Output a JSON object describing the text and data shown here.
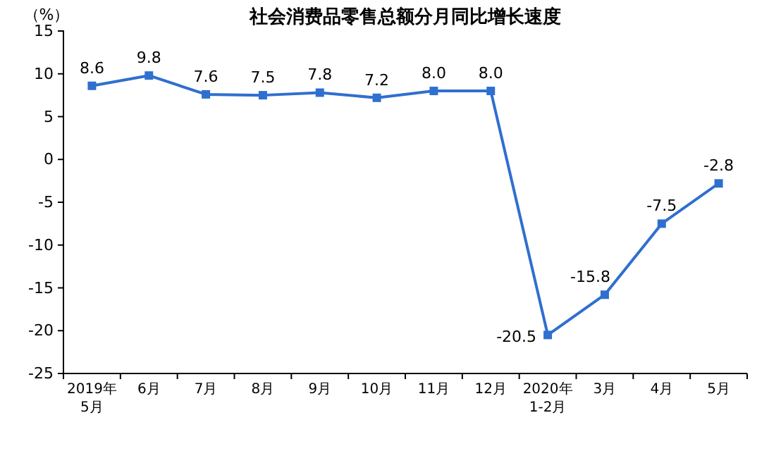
{
  "chart_data": {
    "type": "line",
    "title": "社会消费品零售总额分月同比增长速度",
    "ylabel": "（%）",
    "categories": [
      "2019年\n5月",
      "6月",
      "7月",
      "8月",
      "9月",
      "10月",
      "11月",
      "12月",
      "2020年\n1-2月",
      "3月",
      "4月",
      "5月"
    ],
    "series": [
      {
        "color": "#2f6fcf",
        "values": [
          8.6,
          9.8,
          7.6,
          7.5,
          7.8,
          7.2,
          8.0,
          8.0,
          -20.5,
          -15.8,
          -7.5,
          -2.8
        ],
        "value_labels": [
          "8.6",
          "9.8",
          "7.6",
          "7.5",
          "7.8",
          "7.2",
          "8.0",
          "8.0",
          "-20.5",
          "-15.8",
          "-7.5",
          "-2.8"
        ]
      }
    ],
    "ylim": [
      -25,
      15
    ],
    "yticks": [
      -25,
      -20,
      -15,
      -10,
      -5,
      0,
      5,
      10,
      15
    ],
    "grid": false,
    "marker": "square",
    "line_style": "solid"
  }
}
